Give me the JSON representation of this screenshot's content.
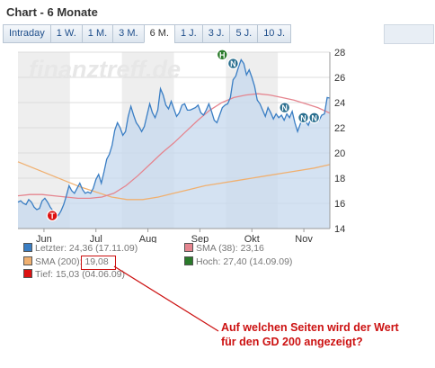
{
  "title": "Chart - 6 Monate",
  "tabs": [
    "Intraday",
    "1 W.",
    "1 M.",
    "3 M.",
    "6 M.",
    "1 J.",
    "3 J.",
    "5 J.",
    "10 J."
  ],
  "active_tab": 4,
  "watermark": "finanztreff.de",
  "legend": {
    "letzter": "Letzter: 24,36 (17.11.09)",
    "sma38": "SMA (38): 23,16",
    "sma200_label": "SMA (200): ",
    "sma200_value": "19,08",
    "hoch": "Hoch: 27,40 (14.09.09)",
    "tief": "Tief: 15,03 (04.06.09)"
  },
  "annotation": {
    "line1": "Auf welchen Seiten wird der Wert",
    "line2": "für den GD 200 angezeigt?"
  },
  "colors": {
    "price": "#3a7ec4",
    "sma38": "#e5858f",
    "sma200": "#f0b070",
    "hoch": "#2a7a2a",
    "tief": "#dd1111",
    "news": "#2a6f8f",
    "annotation": "#cc1111"
  },
  "chart_data": {
    "type": "line",
    "x_labels": [
      "Jun",
      "Jul",
      "Aug",
      "Sep",
      "Okt",
      "Nov"
    ],
    "y_ticks": [
      14,
      16,
      18,
      20,
      22,
      24,
      26,
      28
    ],
    "ylim": [
      14,
      28
    ],
    "series": [
      {
        "name": "Letzter",
        "values": [
          16.1,
          16.2,
          16.0,
          15.9,
          16.3,
          16.1,
          15.7,
          15.5,
          15.6,
          16.2,
          16.4,
          16.1,
          15.7,
          15.4,
          15.3,
          15.03,
          15.4,
          15.9,
          16.6,
          17.4,
          17.0,
          16.8,
          17.2,
          17.6,
          17.1,
          16.8,
          16.9,
          16.8,
          17.2,
          17.9,
          18.3,
          17.6,
          18.5,
          19.5,
          19.9,
          20.6,
          21.8,
          22.4,
          22.0,
          21.4,
          21.7,
          22.9,
          23.7,
          23.0,
          22.4,
          22.1,
          21.7,
          22.1,
          23.0,
          23.9,
          23.2,
          22.8,
          23.4,
          25.1,
          24.6,
          23.8,
          23.5,
          24.1,
          23.5,
          22.9,
          23.2,
          23.8,
          23.9,
          23.4,
          23.4,
          23.5,
          23.6,
          23.8,
          23.2,
          23.0,
          23.4,
          23.9,
          23.3,
          22.6,
          22.4,
          23.0,
          23.6,
          23.8,
          23.9,
          24.4,
          25.8,
          26.1,
          26.8,
          27.4,
          27.1,
          26.2,
          26.6,
          26.0,
          25.3,
          24.2,
          23.9,
          23.4,
          22.9,
          23.6,
          23.2,
          22.7,
          23.1,
          22.8,
          23.0,
          22.6,
          23.1,
          22.8,
          23.3,
          22.4,
          21.7,
          22.3,
          22.9,
          22.5,
          22.2,
          22.8,
          22.5,
          22.8,
          22.6,
          23.0,
          23.1,
          24.4,
          24.36
        ]
      },
      {
        "name": "SMA (38)",
        "values": [
          16.6,
          16.7,
          16.7,
          16.6,
          16.5,
          16.4,
          16.4,
          16.5,
          16.8,
          17.4,
          18.2,
          19.1,
          20.0,
          20.8,
          21.7,
          22.6,
          23.4,
          24.0,
          24.4,
          24.6,
          24.7,
          24.6,
          24.4,
          24.2,
          23.9,
          23.6,
          23.16
        ]
      },
      {
        "name": "SMA (200)",
        "values": [
          19.3,
          18.8,
          18.3,
          17.8,
          17.3,
          16.9,
          16.5,
          16.3,
          16.3,
          16.5,
          16.8,
          17.1,
          17.4,
          17.6,
          17.8,
          18.0,
          18.2,
          18.4,
          18.6,
          18.8,
          19.08
        ]
      }
    ]
  },
  "markers": [
    {
      "label": "T",
      "kind": "tief",
      "x_frac": 0.11,
      "y": 15.03
    },
    {
      "label": "H",
      "kind": "hoch",
      "x_frac": 0.655,
      "y": 27.8
    },
    {
      "label": "N",
      "kind": "news",
      "x_frac": 0.69,
      "y": 27.1
    },
    {
      "label": "N",
      "kind": "news",
      "x_frac": 0.855,
      "y": 23.6
    },
    {
      "label": "N",
      "kind": "news",
      "x_frac": 0.915,
      "y": 22.8
    },
    {
      "label": "N",
      "kind": "news",
      "x_frac": 0.95,
      "y": 22.8
    }
  ]
}
